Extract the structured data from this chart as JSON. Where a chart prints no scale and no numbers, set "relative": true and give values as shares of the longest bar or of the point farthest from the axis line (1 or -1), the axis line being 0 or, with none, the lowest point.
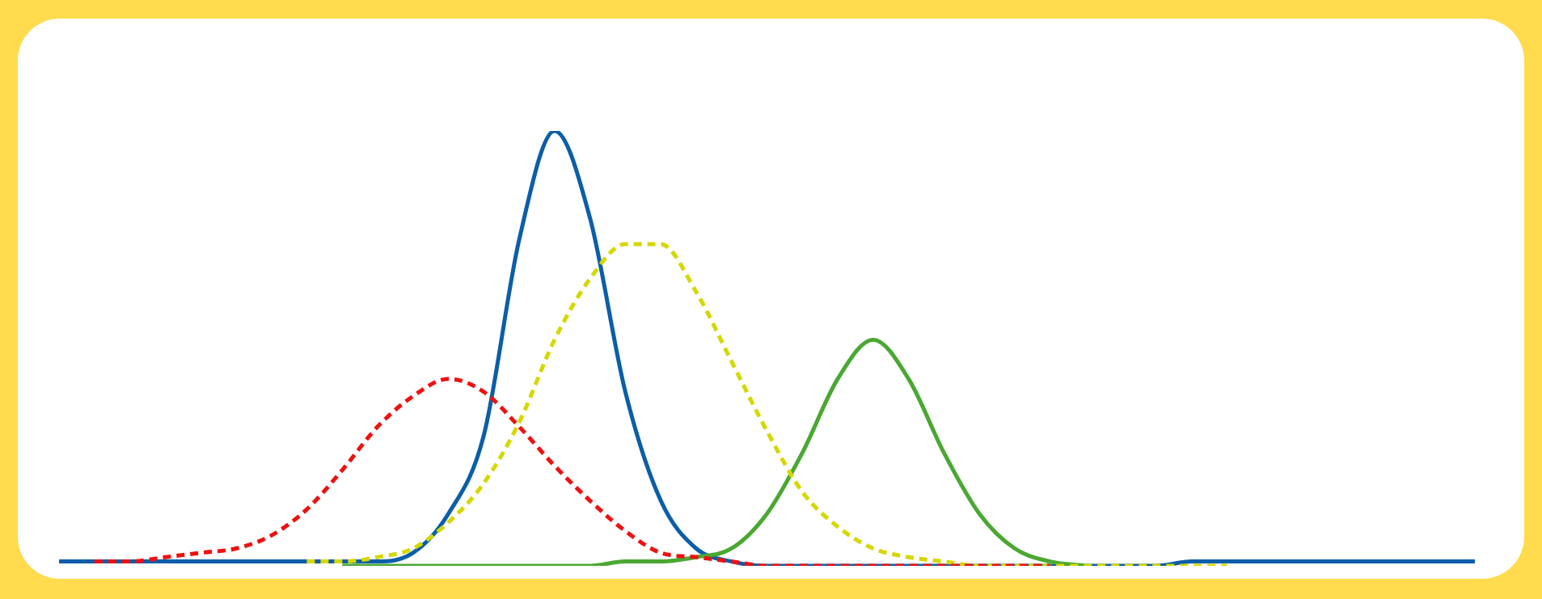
{
  "chart_data": {
    "type": "line",
    "relative": true,
    "legend": false,
    "marker": "none",
    "categories": [
      null,
      null,
      null,
      null,
      null,
      null,
      null,
      null,
      null,
      null,
      null,
      null,
      null,
      null,
      null,
      null,
      null,
      null,
      null,
      null,
      null,
      null,
      null,
      null,
      null,
      null,
      null,
      null,
      null,
      null,
      null,
      null,
      null,
      null,
      null,
      null,
      null,
      null,
      null,
      null,
      null
    ],
    "series": [
      {
        "color": "#ee1111",
        "line_style": "dashed",
        "values": [
          null,
          0.01,
          0.01,
          0.02,
          0.03,
          0.04,
          0.07,
          0.13,
          0.22,
          0.32,
          0.39,
          0.43,
          0.4,
          0.32,
          0.23,
          0.15,
          0.08,
          0.03,
          0.02,
          0.01,
          0,
          0,
          0,
          0,
          0,
          0,
          0,
          0,
          0,
          null,
          null,
          null,
          null,
          null,
          null,
          null,
          null,
          null,
          null,
          null,
          null
        ]
      },
      {
        "color": "#d4d800",
        "line_style": "dashed",
        "values": [
          null,
          null,
          null,
          null,
          null,
          null,
          null,
          0.01,
          0.01,
          0.02,
          0.04,
          0.1,
          0.19,
          0.33,
          0.52,
          0.66,
          0.74,
          0.74,
          0.63,
          0.47,
          0.31,
          0.17,
          0.09,
          0.04,
          0.02,
          0.01,
          0,
          0,
          0,
          0,
          0,
          0,
          0,
          0,
          null,
          null,
          null,
          null,
          null,
          null,
          null
        ]
      },
      {
        "color": "#4aa832",
        "line_style": "solid",
        "values": [
          null,
          null,
          null,
          null,
          null,
          null,
          null,
          null,
          0,
          0,
          0,
          0,
          0,
          0,
          0,
          0,
          0.01,
          0.01,
          0.02,
          0.04,
          0.12,
          0.26,
          0.43,
          0.52,
          0.43,
          0.26,
          0.12,
          0.04,
          0.01,
          0,
          null,
          null,
          null,
          null,
          null,
          null,
          null,
          null,
          null,
          null,
          null
        ]
      },
      {
        "color": "#0b5ea8",
        "line_style": "solid",
        "values": [
          0.01,
          0.01,
          0.01,
          0.01,
          0.01,
          0.01,
          0.01,
          0.01,
          0.01,
          0.01,
          0.03,
          0.12,
          0.3,
          0.75,
          1,
          0.8,
          0.4,
          0.15,
          0.04,
          0.01,
          0,
          0,
          0,
          0,
          0,
          0,
          0,
          0,
          0,
          0,
          0,
          0,
          0.01,
          0.01,
          0.01,
          0.01,
          0.01,
          0.01,
          0.01,
          0.01,
          0.01
        ]
      }
    ]
  }
}
